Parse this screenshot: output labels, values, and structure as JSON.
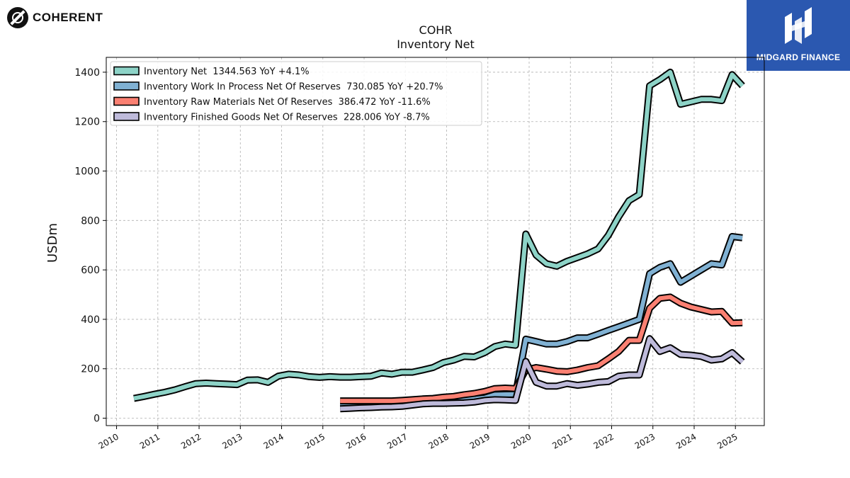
{
  "branding": {
    "left_logo_text": "COHERENT",
    "right_logo_text": "MIDGARD FINANCE",
    "right_logo_color": "#2b58b0"
  },
  "chart_data": {
    "type": "line",
    "title": "COHR",
    "subtitle": "Inventory Net",
    "xlabel": "",
    "ylabel": "USDm",
    "xlim": [
      2009.75,
      2025.7
    ],
    "ylim": [
      -30,
      1460
    ],
    "x_ticks": [
      "2010",
      "2011",
      "2012",
      "2013",
      "2014",
      "2015",
      "2016",
      "2017",
      "2018",
      "2019",
      "2020",
      "2021",
      "2022",
      "2023",
      "2024",
      "2025"
    ],
    "y_ticks": [
      0,
      200,
      400,
      600,
      800,
      1000,
      1200,
      1400
    ],
    "grid": true,
    "legend_position": "top-left",
    "series": [
      {
        "name": "Inventory Net  1344.563 YoY +4.1%",
        "color": "#8dd3c7",
        "points": [
          [
            2010.42,
            80
          ],
          [
            2010.67,
            88
          ],
          [
            2010.92,
            97
          ],
          [
            2011.17,
            105
          ],
          [
            2011.42,
            115
          ],
          [
            2011.67,
            128
          ],
          [
            2011.92,
            140
          ],
          [
            2012.17,
            142
          ],
          [
            2012.42,
            140
          ],
          [
            2012.67,
            138
          ],
          [
            2012.92,
            136
          ],
          [
            2013.17,
            154
          ],
          [
            2013.42,
            155
          ],
          [
            2013.67,
            145
          ],
          [
            2013.92,
            170
          ],
          [
            2014.17,
            178
          ],
          [
            2014.42,
            175
          ],
          [
            2014.67,
            168
          ],
          [
            2014.92,
            165
          ],
          [
            2015.17,
            168
          ],
          [
            2015.42,
            166
          ],
          [
            2015.67,
            166
          ],
          [
            2015.92,
            168
          ],
          [
            2016.17,
            170
          ],
          [
            2016.42,
            183
          ],
          [
            2016.67,
            178
          ],
          [
            2016.92,
            186
          ],
          [
            2017.17,
            186
          ],
          [
            2017.42,
            195
          ],
          [
            2017.67,
            205
          ],
          [
            2017.92,
            225
          ],
          [
            2018.17,
            235
          ],
          [
            2018.42,
            250
          ],
          [
            2018.67,
            248
          ],
          [
            2018.92,
            265
          ],
          [
            2019.17,
            290
          ],
          [
            2019.42,
            300
          ],
          [
            2019.67,
            295
          ],
          [
            2019.92,
            745
          ],
          [
            2020.17,
            660
          ],
          [
            2020.42,
            625
          ],
          [
            2020.67,
            615
          ],
          [
            2020.92,
            635
          ],
          [
            2021.17,
            650
          ],
          [
            2021.42,
            665
          ],
          [
            2021.67,
            685
          ],
          [
            2021.92,
            740
          ],
          [
            2022.17,
            815
          ],
          [
            2022.42,
            880
          ],
          [
            2022.67,
            905
          ],
          [
            2022.92,
            1345
          ],
          [
            2023.17,
            1370
          ],
          [
            2023.42,
            1400
          ],
          [
            2023.67,
            1270
          ],
          [
            2023.92,
            1280
          ],
          [
            2024.17,
            1290
          ],
          [
            2024.42,
            1290
          ],
          [
            2024.67,
            1285
          ],
          [
            2024.92,
            1390
          ],
          [
            2025.17,
            1345
          ]
        ]
      },
      {
        "name": "Inventory Work In Process Net Of Reserves  730.085 YoY +20.7%",
        "color": "#80b1d3",
        "points": [
          [
            2015.42,
            50
          ],
          [
            2015.67,
            50
          ],
          [
            2015.92,
            50
          ],
          [
            2016.17,
            50
          ],
          [
            2016.42,
            50
          ],
          [
            2016.67,
            50
          ],
          [
            2016.92,
            55
          ],
          [
            2017.17,
            60
          ],
          [
            2017.42,
            65
          ],
          [
            2017.67,
            68
          ],
          [
            2017.92,
            70
          ],
          [
            2018.17,
            73
          ],
          [
            2018.42,
            77
          ],
          [
            2018.67,
            78
          ],
          [
            2018.92,
            82
          ],
          [
            2019.17,
            95
          ],
          [
            2019.42,
            96
          ],
          [
            2019.67,
            97
          ],
          [
            2019.92,
            320
          ],
          [
            2020.17,
            310
          ],
          [
            2020.42,
            300
          ],
          [
            2020.67,
            300
          ],
          [
            2020.92,
            310
          ],
          [
            2021.17,
            325
          ],
          [
            2021.42,
            325
          ],
          [
            2021.67,
            340
          ],
          [
            2021.92,
            355
          ],
          [
            2022.17,
            370
          ],
          [
            2022.42,
            385
          ],
          [
            2022.67,
            400
          ],
          [
            2022.92,
            585
          ],
          [
            2023.17,
            610
          ],
          [
            2023.42,
            625
          ],
          [
            2023.67,
            550
          ],
          [
            2023.92,
            575
          ],
          [
            2024.17,
            600
          ],
          [
            2024.42,
            625
          ],
          [
            2024.67,
            620
          ],
          [
            2024.92,
            735
          ],
          [
            2025.17,
            730
          ]
        ]
      },
      {
        "name": "Inventory Raw Materials Net Of Reserves  386.472 YoY -11.6%",
        "color": "#fb8072",
        "points": [
          [
            2015.42,
            70
          ],
          [
            2015.67,
            70
          ],
          [
            2015.92,
            70
          ],
          [
            2016.17,
            70
          ],
          [
            2016.42,
            70
          ],
          [
            2016.67,
            70
          ],
          [
            2016.92,
            72
          ],
          [
            2017.17,
            75
          ],
          [
            2017.42,
            78
          ],
          [
            2017.67,
            80
          ],
          [
            2017.92,
            85
          ],
          [
            2018.17,
            88
          ],
          [
            2018.42,
            95
          ],
          [
            2018.67,
            100
          ],
          [
            2018.92,
            108
          ],
          [
            2019.17,
            120
          ],
          [
            2019.42,
            122
          ],
          [
            2019.67,
            120
          ],
          [
            2019.92,
            195
          ],
          [
            2020.17,
            205
          ],
          [
            2020.42,
            198
          ],
          [
            2020.67,
            190
          ],
          [
            2020.92,
            188
          ],
          [
            2021.17,
            195
          ],
          [
            2021.42,
            205
          ],
          [
            2021.67,
            212
          ],
          [
            2021.92,
            240
          ],
          [
            2022.17,
            270
          ],
          [
            2022.42,
            315
          ],
          [
            2022.67,
            315
          ],
          [
            2022.92,
            445
          ],
          [
            2023.17,
            485
          ],
          [
            2023.42,
            490
          ],
          [
            2023.67,
            465
          ],
          [
            2023.92,
            450
          ],
          [
            2024.17,
            440
          ],
          [
            2024.42,
            430
          ],
          [
            2024.67,
            432
          ],
          [
            2024.92,
            385
          ],
          [
            2025.17,
            386
          ]
        ]
      },
      {
        "name": "Inventory Finished Goods Net Of Reserves  228.006 YoY -8.7%",
        "color": "#bebada",
        "points": [
          [
            2015.42,
            38
          ],
          [
            2015.67,
            40
          ],
          [
            2015.92,
            42
          ],
          [
            2016.17,
            43
          ],
          [
            2016.42,
            45
          ],
          [
            2016.67,
            46
          ],
          [
            2016.92,
            48
          ],
          [
            2017.17,
            53
          ],
          [
            2017.42,
            58
          ],
          [
            2017.67,
            60
          ],
          [
            2017.92,
            60
          ],
          [
            2018.17,
            61
          ],
          [
            2018.42,
            62
          ],
          [
            2018.67,
            65
          ],
          [
            2018.92,
            72
          ],
          [
            2019.17,
            75
          ],
          [
            2019.42,
            74
          ],
          [
            2019.67,
            72
          ],
          [
            2019.92,
            230
          ],
          [
            2020.17,
            145
          ],
          [
            2020.42,
            130
          ],
          [
            2020.67,
            130
          ],
          [
            2020.92,
            140
          ],
          [
            2021.17,
            133
          ],
          [
            2021.42,
            138
          ],
          [
            2021.67,
            145
          ],
          [
            2021.92,
            148
          ],
          [
            2022.17,
            170
          ],
          [
            2022.42,
            175
          ],
          [
            2022.67,
            175
          ],
          [
            2022.92,
            322
          ],
          [
            2023.17,
            270
          ],
          [
            2023.42,
            285
          ],
          [
            2023.67,
            258
          ],
          [
            2023.92,
            255
          ],
          [
            2024.17,
            250
          ],
          [
            2024.42,
            235
          ],
          [
            2024.67,
            240
          ],
          [
            2024.92,
            265
          ],
          [
            2025.17,
            228
          ]
        ]
      }
    ]
  }
}
